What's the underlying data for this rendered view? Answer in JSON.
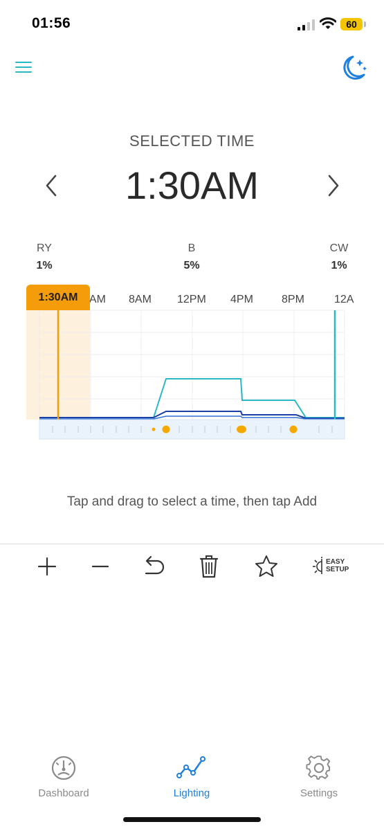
{
  "status_bar": {
    "time": "01:56",
    "battery": "60"
  },
  "header": {
    "menu_icon": "menu-icon",
    "mode_icon": "moon-stars-icon"
  },
  "selected": {
    "label": "SELECTED TIME",
    "time": "1:30AM"
  },
  "channels": [
    {
      "name": "RY",
      "value": "1%"
    },
    {
      "name": "B",
      "value": "5%"
    },
    {
      "name": "CW",
      "value": "1%"
    }
  ],
  "chart": {
    "cursor_label": "1:30AM",
    "time_labels": [
      "4AM",
      "8AM",
      "12PM",
      "4PM",
      "8PM",
      "12A"
    ],
    "accent_color": "#f59c0a",
    "series": [
      {
        "name": "RY",
        "color": "#1a3fa8"
      },
      {
        "name": "B",
        "color": "#2bb8c6"
      },
      {
        "name": "CW",
        "color": "#2f6fd6"
      }
    ]
  },
  "hint": "Tap and drag to select a time, then tap Add",
  "toolbar": {
    "add": "plus-icon",
    "remove": "minus-icon",
    "undo": "undo-icon",
    "delete": "trash-icon",
    "favorite": "star-icon",
    "easy_setup_line1": "EASY",
    "easy_setup_line2": "SETUP"
  },
  "nav": {
    "items": [
      {
        "label": "Dashboard",
        "icon": "gauge-icon",
        "active": false
      },
      {
        "label": "Lighting",
        "icon": "chart-line-icon",
        "active": true
      },
      {
        "label": "Settings",
        "icon": "gear-icon",
        "active": false
      }
    ],
    "active_color": "#1e7fe0",
    "inactive_color": "#8a8a8a"
  }
}
